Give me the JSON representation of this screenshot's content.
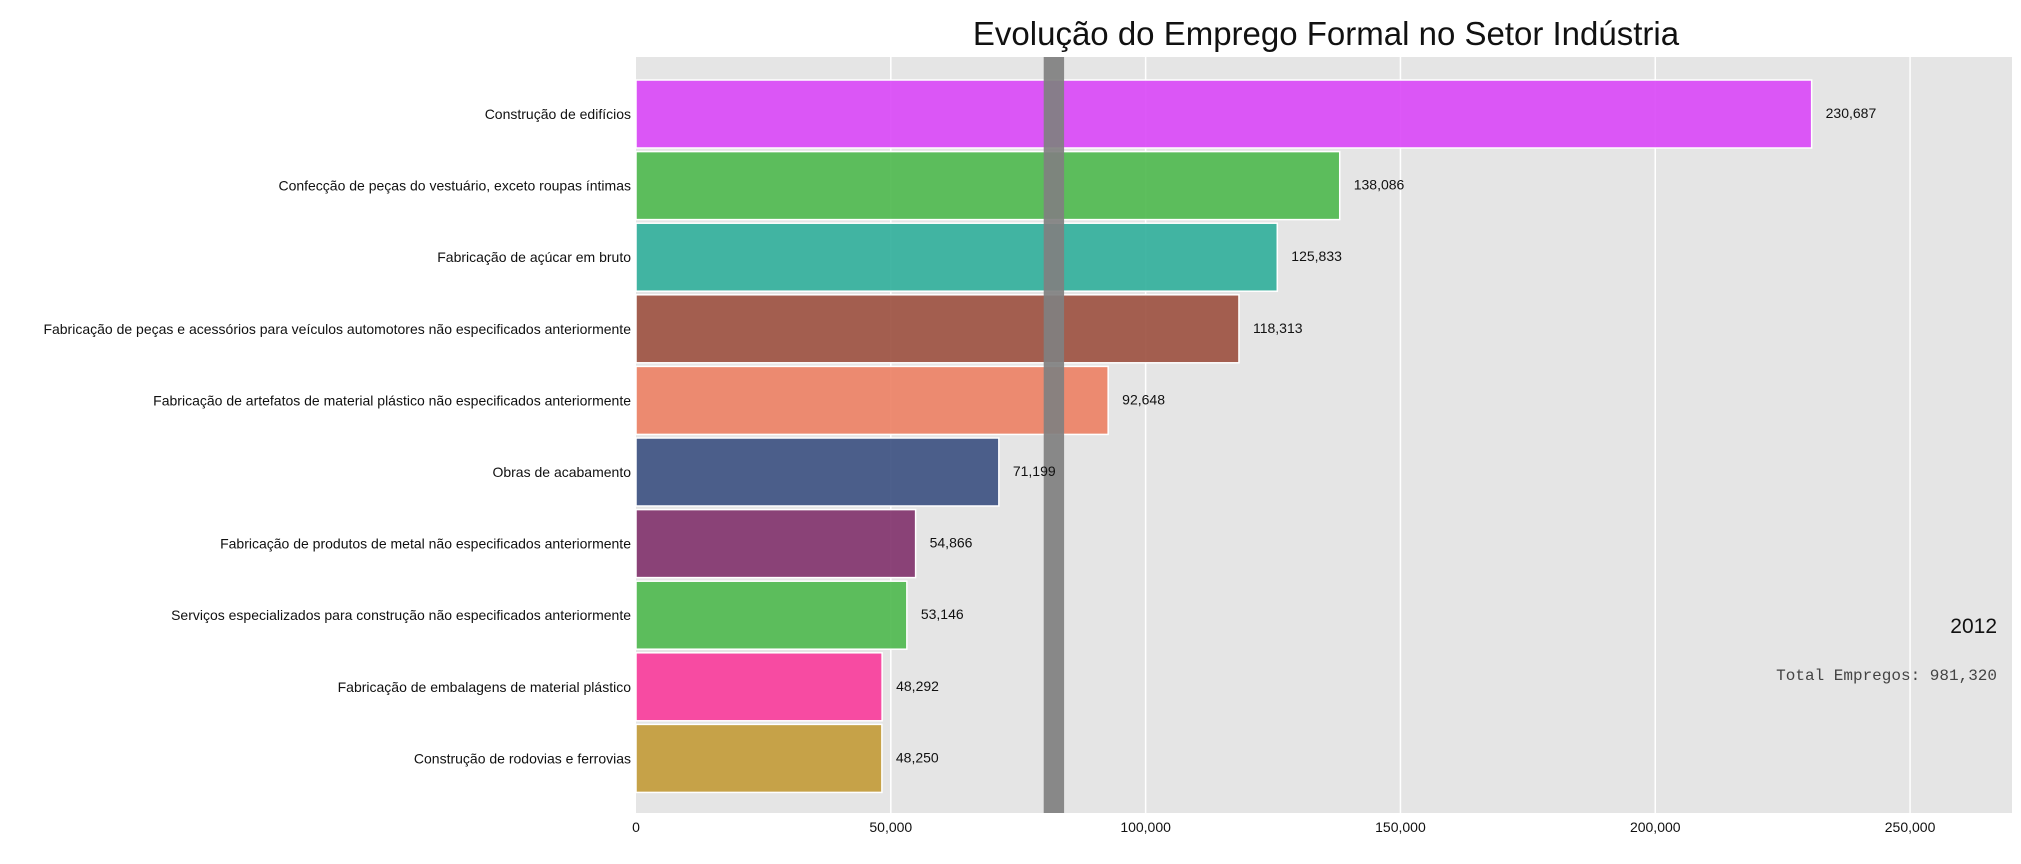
{
  "chart_data": {
    "type": "bar",
    "orientation": "horizontal",
    "title": "Evolução do Emprego Formal no Setor Indústria",
    "categories": [
      "Construção de edifícios",
      "Confecção de peças do vestuário, exceto roupas íntimas",
      "Fabricação de açúcar em bruto",
      "Fabricação de peças e acessórios para veículos automotores não especificados anteriormente",
      "Fabricação de artefatos de material plástico não especificados anteriormente",
      "Obras de acabamento",
      "Fabricação de produtos de metal não especificados anteriormente",
      "Serviços especializados para construção não especificados anteriormente",
      "Fabricação de embalagens de material plástico",
      "Construção de rodovias e ferrovias"
    ],
    "values": [
      230687,
      138086,
      125833,
      118313,
      92648,
      71199,
      54866,
      53146,
      48292,
      48250
    ],
    "value_labels": [
      "230,687",
      "138,086",
      "125,833",
      "118,313",
      "92,648",
      "71,199",
      "54,866",
      "53,146",
      "48,292",
      "48,250"
    ],
    "colors": [
      "#d946f7",
      "#4cb84c",
      "#2fae9a",
      "#9b4f3e",
      "#ec8063",
      "#3a4f80",
      "#80306a",
      "#4cb84c",
      "#f83a9a",
      "#c29a36"
    ],
    "xlim": [
      0,
      270000
    ],
    "xticks": [
      0,
      50000,
      100000,
      150000,
      200000,
      250000
    ],
    "xtick_labels": [
      "0",
      "50,000",
      "100,000",
      "150,000",
      "200,000",
      "250,000"
    ],
    "reference_band": {
      "from": 80000,
      "to": 84000,
      "color": "#808080"
    },
    "grid": true,
    "background": "#e5e5e5",
    "year_label": "2012",
    "total_label": "Total Empregos: 981,320"
  }
}
